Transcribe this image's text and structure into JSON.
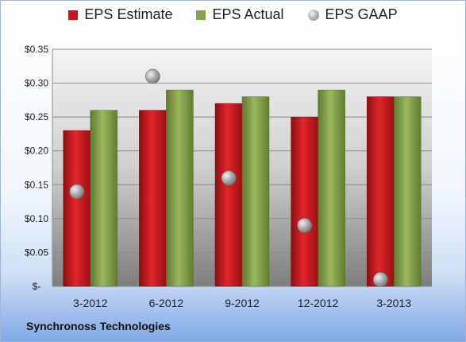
{
  "chart_data": {
    "type": "bar",
    "categories": [
      "3-2012",
      "6-2012",
      "9-2012",
      "12-2012",
      "3-2013"
    ],
    "series": [
      {
        "name": "EPS Estimate",
        "values": [
          0.23,
          0.26,
          0.27,
          0.25,
          0.28
        ],
        "color": "#c8161b"
      },
      {
        "name": "EPS Actual",
        "values": [
          0.26,
          0.29,
          0.28,
          0.29,
          0.28
        ],
        "color": "#86a24c"
      },
      {
        "name": "EPS GAAP",
        "values": [
          0.14,
          0.31,
          0.16,
          0.09,
          0.01
        ],
        "color": "#a8a8a8",
        "style": "marker"
      }
    ],
    "ylim": [
      0,
      0.35
    ],
    "yticks": [
      0,
      0.05,
      0.1,
      0.15,
      0.2,
      0.25,
      0.3,
      0.35
    ],
    "ytick_labels": [
      "$-",
      "$0.05",
      "$0.10",
      "$0.15",
      "$0.20",
      "$0.25",
      "$0.30",
      "$0.35"
    ],
    "grid": true,
    "legend": "top"
  },
  "legend": {
    "estimate": "EPS Estimate",
    "actual": "EPS Actual",
    "gaap": "EPS GAAP"
  },
  "footer": {
    "company": "Synchronoss Technologies"
  }
}
